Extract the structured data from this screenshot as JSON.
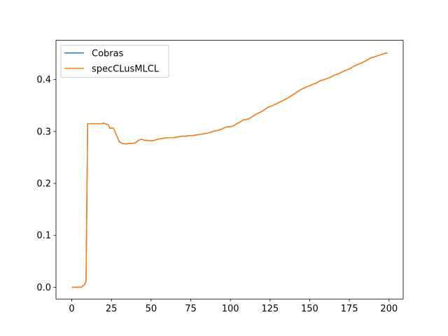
{
  "chart_data": {
    "type": "line",
    "title": "",
    "xlabel": "",
    "ylabel": "",
    "xlim": [
      -9.95,
      208.95
    ],
    "ylim": [
      -0.0227,
      0.4756
    ],
    "xticks": [
      0,
      25,
      50,
      75,
      100,
      125,
      150,
      175,
      200
    ],
    "yticks": [
      0.0,
      0.1,
      0.2,
      0.3,
      0.4
    ],
    "xtick_labels": [
      "0",
      "25",
      "50",
      "75",
      "100",
      "125",
      "150",
      "175",
      "200"
    ],
    "ytick_labels": [
      "0.0",
      "0.1",
      "0.2",
      "0.3",
      "0.4"
    ],
    "grid": false,
    "legend_position": "top-left",
    "x": [
      0,
      2,
      4,
      6,
      8,
      9,
      10,
      12,
      14,
      16,
      18,
      19,
      20,
      22,
      23,
      24,
      26,
      27,
      28,
      30,
      32,
      34,
      36,
      38,
      40,
      42,
      44,
      46,
      48,
      50,
      52,
      54,
      56,
      58,
      60,
      62,
      64,
      66,
      68,
      70,
      72,
      74,
      76,
      78,
      80,
      82,
      84,
      86,
      88,
      90,
      92,
      94,
      96,
      98,
      100,
      102,
      104,
      106,
      108,
      110,
      112,
      114,
      116,
      118,
      120,
      122,
      124,
      126,
      128,
      130,
      132,
      134,
      136,
      138,
      140,
      142,
      144,
      146,
      148,
      150,
      152,
      154,
      156,
      158,
      160,
      162,
      164,
      166,
      168,
      170,
      172,
      174,
      176,
      178,
      180,
      182,
      184,
      186,
      188,
      190,
      192,
      194,
      196,
      198,
      199
    ],
    "series": [
      {
        "name": "Cobras",
        "color": "#1f77b4",
        "values": [
          0,
          0,
          0,
          0,
          0.005,
          0.012,
          0.315,
          0.315,
          0.315,
          0.315,
          0.315,
          0.315,
          0.316,
          0.314,
          0.313,
          0.306,
          0.307,
          0.302,
          0.294,
          0.28,
          0.277,
          0.276,
          0.277,
          0.277,
          0.278,
          0.283,
          0.285,
          0.283,
          0.283,
          0.282,
          0.283,
          0.285,
          0.286,
          0.287,
          0.288,
          0.288,
          0.288,
          0.289,
          0.29,
          0.291,
          0.291,
          0.292,
          0.292,
          0.293,
          0.294,
          0.295,
          0.296,
          0.297,
          0.299,
          0.301,
          0.302,
          0.304,
          0.307,
          0.309,
          0.309,
          0.311,
          0.315,
          0.318,
          0.322,
          0.323,
          0.325,
          0.329,
          0.333,
          0.336,
          0.339,
          0.343,
          0.347,
          0.349,
          0.352,
          0.355,
          0.358,
          0.361,
          0.364,
          0.368,
          0.372,
          0.376,
          0.38,
          0.383,
          0.386,
          0.388,
          0.391,
          0.393,
          0.397,
          0.399,
          0.401,
          0.403,
          0.406,
          0.409,
          0.411,
          0.414,
          0.417,
          0.419,
          0.422,
          0.426,
          0.429,
          0.431,
          0.434,
          0.437,
          0.441,
          0.443,
          0.445,
          0.447,
          0.449,
          0.451,
          0.451
        ]
      },
      {
        "name": "specCLusMLCL",
        "color": "#ff7f0e",
        "values": [
          0,
          0,
          0,
          0,
          0.005,
          0.012,
          0.315,
          0.315,
          0.315,
          0.315,
          0.315,
          0.315,
          0.316,
          0.314,
          0.313,
          0.306,
          0.307,
          0.302,
          0.294,
          0.28,
          0.277,
          0.276,
          0.277,
          0.277,
          0.278,
          0.283,
          0.285,
          0.283,
          0.283,
          0.282,
          0.283,
          0.285,
          0.286,
          0.287,
          0.288,
          0.288,
          0.288,
          0.289,
          0.29,
          0.291,
          0.291,
          0.292,
          0.292,
          0.293,
          0.294,
          0.295,
          0.296,
          0.297,
          0.299,
          0.301,
          0.302,
          0.304,
          0.307,
          0.309,
          0.309,
          0.311,
          0.315,
          0.318,
          0.322,
          0.323,
          0.325,
          0.329,
          0.333,
          0.336,
          0.339,
          0.343,
          0.347,
          0.349,
          0.352,
          0.355,
          0.358,
          0.361,
          0.364,
          0.368,
          0.372,
          0.376,
          0.38,
          0.383,
          0.386,
          0.388,
          0.391,
          0.393,
          0.397,
          0.399,
          0.401,
          0.403,
          0.406,
          0.409,
          0.411,
          0.414,
          0.417,
          0.419,
          0.422,
          0.426,
          0.429,
          0.431,
          0.434,
          0.437,
          0.441,
          0.443,
          0.445,
          0.447,
          0.449,
          0.451,
          0.451
        ]
      }
    ]
  }
}
